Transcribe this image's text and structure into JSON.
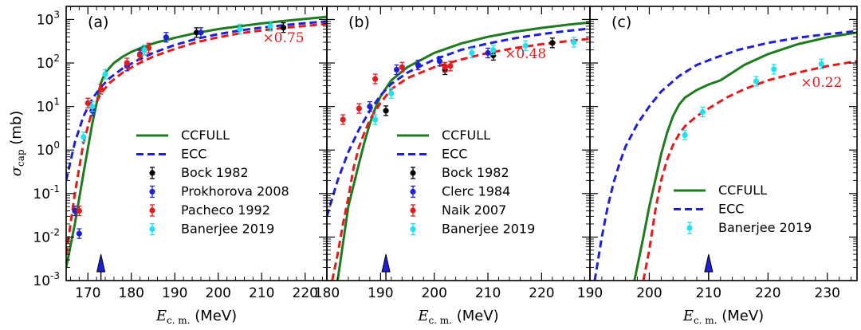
{
  "chart_data": [
    {
      "type": "scatter",
      "panel": "(a)",
      "xlim": [
        165,
        225
      ],
      "ylim": [
        0.001,
        2000
      ],
      "yscale": "log",
      "xticks": [
        170,
        180,
        190,
        200,
        210,
        220
      ],
      "xtick_labels": [
        "170",
        "180",
        "190",
        "200",
        "210",
        "220"
      ],
      "arrow_x": 173,
      "scale_label": "×0.75",
      "scale_label_x": 215,
      "scale_label_y": 300,
      "curves": [
        {
          "name": "CCFULL",
          "color": "#1e7b1e",
          "dash": "solid",
          "x": [
            165,
            167,
            169,
            171,
            172,
            173,
            174,
            176,
            178,
            180,
            183,
            186,
            190,
            195,
            200,
            205,
            210,
            215,
            220,
            225
          ],
          "y": [
            0.002,
            0.02,
            0.3,
            4,
            12,
            35,
            60,
            100,
            140,
            180,
            240,
            300,
            380,
            490,
            600,
            700,
            810,
            920,
            1030,
            1150
          ]
        },
        {
          "name": "ECC",
          "color": "#1f1fd8",
          "dash": "dashed",
          "x": [
            165,
            167,
            169,
            171,
            173,
            175,
            178,
            181,
            185,
            190,
            195,
            200,
            205,
            210,
            215,
            220,
            225
          ],
          "y": [
            0.2,
            1.5,
            6,
            15,
            28,
            45,
            75,
            110,
            170,
            260,
            360,
            460,
            560,
            650,
            740,
            820,
            900
          ]
        },
        {
          "name": "ECC×0.75",
          "color": "#e41a1c",
          "dash": "dashed",
          "x": [
            165,
            167,
            169,
            171,
            173,
            175,
            178,
            181,
            185,
            190,
            195,
            200,
            205,
            210,
            215,
            220,
            225
          ],
          "y": [
            0.004,
            0.1,
            1.5,
            8,
            20,
            35,
            60,
            90,
            140,
            210,
            300,
            390,
            480,
            560,
            640,
            710,
            790
          ]
        }
      ],
      "series": [
        {
          "name": "Bock 1982",
          "color": "#000000",
          "points": [
            [
              183,
              200
            ],
            [
              195,
              500
            ],
            [
              215,
              650
            ]
          ]
        },
        {
          "name": "Prokhorova 2008",
          "color": "#1f1fd8",
          "points": [
            [
              167,
              0.04
            ],
            [
              168,
              0.012
            ],
            [
              171,
              8
            ],
            [
              179,
              85
            ],
            [
              182,
              160
            ],
            [
              188,
              390
            ],
            [
              196,
              500
            ]
          ]
        },
        {
          "name": "Pacheco 1992",
          "color": "#e41a1c",
          "points": [
            [
              168,
              0.04
            ],
            [
              170,
              12
            ],
            [
              173,
              25
            ],
            [
              179,
              100
            ],
            [
              182,
              150
            ],
            [
              184,
              220
            ]
          ]
        },
        {
          "name": "Banerjee 2019",
          "color": "#22e0f0",
          "points": [
            [
              169,
              2
            ],
            [
              171,
              10
            ],
            [
              174,
              55
            ],
            [
              183,
              200
            ],
            [
              205,
              600
            ],
            [
              212,
              700
            ]
          ]
        }
      ],
      "legend": {
        "position": "lower-right",
        "entries": [
          "CCFULL",
          "ECC",
          "Bock 1982",
          "Prokhorova 2008",
          "Pacheco 1992",
          "Banerjee 2019"
        ]
      }
    },
    {
      "type": "scatter",
      "panel": "(b)",
      "xlim": [
        180,
        229
      ],
      "ylim": [
        0.001,
        2000
      ],
      "yscale": "log",
      "xticks": [
        180,
        190,
        200,
        210,
        220
      ],
      "xtick_labels": [
        "180",
        "190",
        "200",
        "210",
        "220"
      ],
      "arrow_x": 191,
      "scale_label": "×0.48",
      "scale_label_x": 217,
      "scale_label_y": 130,
      "curves": [
        {
          "name": "CCFULL",
          "color": "#1e7b1e",
          "dash": "solid",
          "x": [
            182,
            184,
            186,
            187,
            188,
            189,
            190,
            192,
            195,
            200,
            205,
            210,
            215,
            220,
            225,
            229
          ],
          "y": [
            0.001,
            0.05,
            0.5,
            1.5,
            4,
            9,
            17,
            40,
            80,
            170,
            280,
            400,
            520,
            640,
            760,
            850
          ]
        },
        {
          "name": "ECC",
          "color": "#1f1fd8",
          "dash": "dashed",
          "x": [
            180,
            182,
            184,
            186,
            188,
            190,
            192,
            195,
            200,
            205,
            210,
            215,
            220,
            225,
            229
          ],
          "y": [
            0.03,
            0.2,
            0.9,
            3,
            8,
            18,
            33,
            60,
            120,
            200,
            280,
            370,
            460,
            550,
            620
          ]
        },
        {
          "name": "ECC×0.48",
          "color": "#e41a1c",
          "dash": "dashed",
          "x": [
            181,
            182,
            183,
            184,
            185,
            186,
            187,
            188,
            190,
            192,
            195,
            200,
            205,
            210,
            215,
            220,
            225,
            229
          ],
          "y": [
            0.001,
            0.004,
            0.02,
            0.08,
            0.4,
            1.2,
            2.5,
            5,
            12,
            25,
            45,
            80,
            120,
            170,
            220,
            270,
            320,
            360
          ]
        }
      ],
      "series": [
        {
          "name": "Bock 1982",
          "color": "#000000",
          "points": [
            [
              191,
              8
            ],
            [
              202,
              70
            ],
            [
              211,
              150
            ],
            [
              222,
              290
            ]
          ]
        },
        {
          "name": "Clerc 1984",
          "color": "#1f1fd8",
          "points": [
            [
              188,
              10
            ],
            [
              193,
              70
            ],
            [
              197,
              90
            ],
            [
              201,
              110
            ],
            [
              210,
              170
            ]
          ]
        },
        {
          "name": "Naik 2007",
          "color": "#e41a1c",
          "points": [
            [
              183,
              5
            ],
            [
              186,
              9
            ],
            [
              189,
              43
            ],
            [
              194,
              80
            ],
            [
              202,
              80
            ],
            [
              203,
              85
            ]
          ]
        },
        {
          "name": "Banerjee 2019",
          "color": "#22e0f0",
          "points": [
            [
              189,
              5
            ],
            [
              192,
              20
            ],
            [
              207,
              170
            ],
            [
              211,
              200
            ],
            [
              217,
              250
            ],
            [
              226,
              300
            ]
          ]
        }
      ],
      "legend": {
        "position": "lower-right",
        "entries": [
          "CCFULL",
          "ECC",
          "Bock 1982",
          "Clerc 1984",
          "Naik 2007",
          "Banerjee 2019"
        ]
      }
    },
    {
      "type": "scatter",
      "panel": "(c)",
      "xlim": [
        190,
        235
      ],
      "ylim": [
        0.001,
        2000
      ],
      "yscale": "log",
      "xticks": [
        190,
        200,
        210,
        220,
        230
      ],
      "xtick_labels": [
        "190",
        "200",
        "210",
        "220",
        "230"
      ],
      "arrow_x": 210,
      "scale_label": "×0.22",
      "scale_label_x": 229,
      "scale_label_y": 28,
      "curves": [
        {
          "name": "CCFULL",
          "color": "#1e7b1e",
          "dash": "solid",
          "x": [
            197.5,
            199,
            200,
            201,
            202,
            203,
            204,
            205,
            206,
            208,
            210,
            212,
            214,
            216,
            220,
            225,
            230,
            235
          ],
          "y": [
            0.001,
            0.01,
            0.05,
            0.2,
            0.8,
            2.5,
            6,
            11,
            16,
            24,
            32,
            40,
            60,
            90,
            160,
            270,
            390,
            500
          ]
        },
        {
          "name": "ECC",
          "color": "#1f1fd8",
          "dash": "dashed",
          "x": [
            190.8,
            192,
            193,
            194,
            195,
            196,
            198,
            200,
            202,
            205,
            208,
            211,
            215,
            220,
            225,
            230,
            235
          ],
          "y": [
            0.001,
            0.01,
            0.05,
            0.18,
            0.5,
            1.2,
            4,
            10,
            22,
            50,
            90,
            130,
            200,
            290,
            380,
            460,
            540
          ]
        },
        {
          "name": "ECC×0.22",
          "color": "#e41a1c",
          "dash": "dashed",
          "x": [
            199,
            200,
            201,
            202,
            203,
            204,
            205,
            206,
            208,
            210,
            213,
            216,
            220,
            225,
            230,
            235
          ],
          "y": [
            0.001,
            0.005,
            0.04,
            0.2,
            0.6,
            1.3,
            2.3,
            3.5,
            6,
            9,
            16,
            25,
            40,
            60,
            85,
            110
          ]
        }
      ],
      "series": [
        {
          "name": "Banerjee 2019",
          "color": "#22e0f0",
          "points": [
            [
              206,
              2.2
            ],
            [
              209,
              7.5
            ],
            [
              218,
              38
            ],
            [
              221,
              72
            ],
            [
              229,
              95
            ]
          ]
        }
      ],
      "legend": {
        "position": "lower-center",
        "entries": [
          "CCFULL",
          "ECC",
          "Banerjee 2019"
        ]
      }
    }
  ],
  "y_axis": {
    "ticks": [
      0.001,
      0.01,
      0.1,
      1,
      10,
      100,
      1000
    ],
    "tick_labels": [
      "10^-3",
      "10^-2",
      "10^-1",
      "10^0",
      "10^1",
      "10^2",
      "10^3"
    ],
    "title_symbol": "σ",
    "title_sub": "cap",
    "title_unit": " (mb)"
  },
  "x_axis": {
    "title_symbol": "E",
    "title_sub": "c. m.",
    "title_unit": "  (MeV)"
  }
}
